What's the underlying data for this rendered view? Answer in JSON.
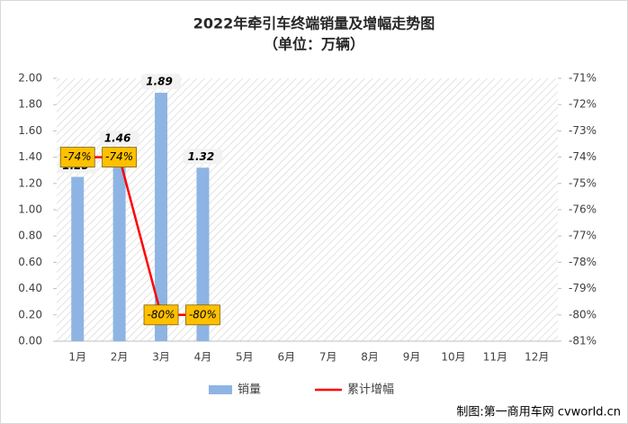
{
  "chart_data": {
    "type": "bar",
    "title": "2022年牵引车终端销量及增幅走势图",
    "subtitle": "（单位：万辆）",
    "categories": [
      "1月",
      "2月",
      "3月",
      "4月",
      "5月",
      "6月",
      "7月",
      "8月",
      "9月",
      "10月",
      "11月",
      "12月"
    ],
    "series": [
      {
        "name": "销量",
        "type": "bar",
        "color": "#8eb4e3",
        "values": [
          1.25,
          1.46,
          1.89,
          1.32,
          null,
          null,
          null,
          null,
          null,
          null,
          null,
          null
        ]
      },
      {
        "name": "累计增幅",
        "type": "line",
        "axis": "y2",
        "color": "#ff0000",
        "values": [
          -74,
          -74,
          -80,
          -80,
          null,
          null,
          null,
          null,
          null,
          null,
          null,
          null
        ],
        "value_labels": [
          "-74%",
          "-74%",
          "-80%",
          "-80%",
          null,
          null,
          null,
          null,
          null,
          null,
          null,
          null
        ]
      }
    ],
    "ylim": [
      0,
      2
    ],
    "yticks": [
      {
        "value": 0,
        "label": "0.00"
      },
      {
        "value": 0.2,
        "label": "0.20"
      },
      {
        "value": 0.4,
        "label": "0.40"
      },
      {
        "value": 0.6,
        "label": "0.60"
      },
      {
        "value": 0.8,
        "label": "0.80"
      },
      {
        "value": 1,
        "label": "1.00"
      },
      {
        "value": 1.2,
        "label": "1.20"
      },
      {
        "value": 1.4,
        "label": "1.40"
      },
      {
        "value": 1.6,
        "label": "1.60"
      },
      {
        "value": 1.8,
        "label": "1.80"
      },
      {
        "value": 2,
        "label": "2.00"
      }
    ],
    "y2lim": [
      -81,
      -71
    ],
    "y2ticks": [
      {
        "value": -81,
        "label": "-81%"
      },
      {
        "value": -80,
        "label": "-80%"
      },
      {
        "value": -79,
        "label": "-79%"
      },
      {
        "value": -78,
        "label": "-78%"
      },
      {
        "value": -77,
        "label": "-77%"
      },
      {
        "value": -76,
        "label": "-76%"
      },
      {
        "value": -75,
        "label": "-75%"
      },
      {
        "value": -74,
        "label": "-74%"
      },
      {
        "value": -73,
        "label": "-73%"
      },
      {
        "value": -72,
        "label": "-72%"
      },
      {
        "value": -71,
        "label": "-71%"
      }
    ],
    "grid": false,
    "legend": "bottom",
    "source": "制图:第一商用车网 cvworld.cn"
  }
}
